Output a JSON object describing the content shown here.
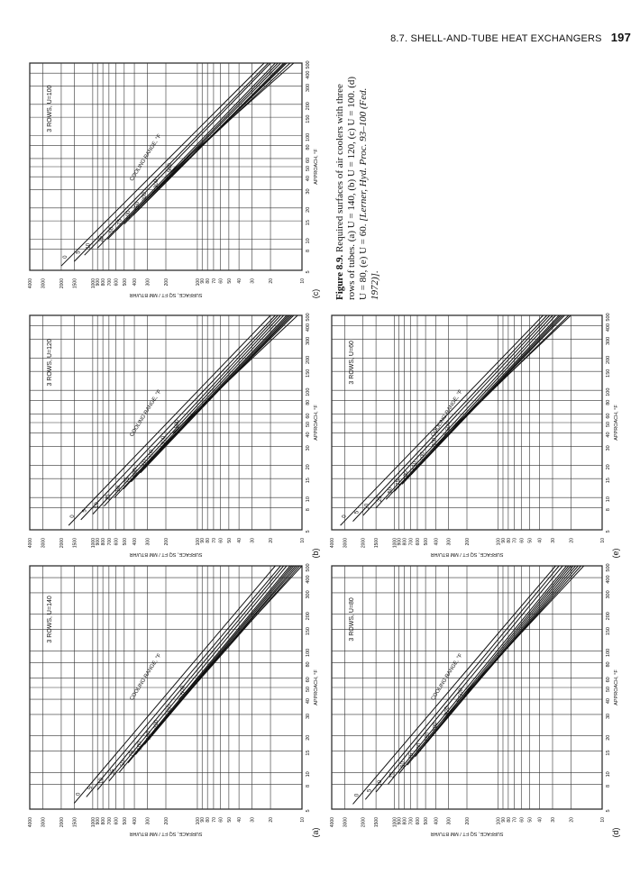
{
  "header": {
    "section": "8.7. SHELL-AND-TUBE HEAT EXCHANGERS",
    "page_number": "197"
  },
  "caption": {
    "figure_label": "Figure 8.9.",
    "text": "Required surfaces of air coolers with three rows of tubes. (a) U = 140, (b) U = 120, (c) U = 100. (d) U = 80, (e) U = 60.",
    "citation": "[Lerner, Hyd. Proc. 93–100 (Fed. 1972)]."
  },
  "colors": {
    "ink": "#111111",
    "grid": "#333333",
    "paper": "#ffffff"
  },
  "chart_data": [
    {
      "type": "line",
      "panel": "(a)",
      "title": "3 ROWS, U=140",
      "xlabel": "APPROACH, °F",
      "ylabel": "SURFACE, SQ FT / MM BTU/HR",
      "xscale": "log",
      "yscale": "log",
      "xlim": [
        5,
        500
      ],
      "ylim": [
        10,
        4000
      ],
      "x_ticks": [
        "5",
        "8",
        "10",
        "15",
        "20",
        "30",
        "40",
        "50",
        "60",
        "80",
        "100",
        "150",
        "200",
        "300",
        "400",
        "500"
      ],
      "y_ticks": [
        "4000",
        "3000",
        "2000",
        "1500",
        "1000",
        "900",
        "800",
        "700",
        "600",
        "500",
        "400",
        "300",
        "200",
        "100",
        "90",
        "80",
        "70",
        "60",
        "50",
        "40",
        "30",
        "20",
        "10"
      ],
      "annotation": "COOLING RANGE, °F",
      "series": [
        {
          "name": "0",
          "x": [
            5.6,
            500
          ],
          "y": [
            1500,
            18
          ]
        },
        {
          "name": "5",
          "x": [
            6.3,
            500
          ],
          "y": [
            1150,
            16
          ]
        },
        {
          "name": "10",
          "x": [
            7.2,
            500
          ],
          "y": [
            900,
            15
          ]
        },
        {
          "name": "25",
          "x": [
            8.5,
            500
          ],
          "y": [
            700,
            14
          ]
        },
        {
          "name": "50",
          "x": [
            10,
            500
          ],
          "y": [
            560,
            13
          ]
        },
        {
          "name": "75",
          "x": [
            12,
            500
          ],
          "y": [
            460,
            12.5
          ]
        },
        {
          "name": "100",
          "x": [
            14,
            500
          ],
          "y": [
            390,
            12
          ]
        },
        {
          "name": "150",
          "x": [
            17,
            500
          ],
          "y": [
            320,
            11.5
          ]
        },
        {
          "name": "200",
          "x": [
            21,
            500
          ],
          "y": [
            270,
            11
          ]
        },
        {
          "name": "300",
          "x": [
            28,
            500
          ],
          "y": [
            200,
            10.5
          ]
        },
        {
          "name": "500",
          "x": [
            40,
            500
          ],
          "y": [
            150,
            10
          ]
        }
      ]
    },
    {
      "type": "line",
      "panel": "(b)",
      "title": "3 ROWS, U=120",
      "xlabel": "APPROACH, °F",
      "ylabel": "SURFACE, SQ FT / MM BTU/HR",
      "xscale": "log",
      "yscale": "log",
      "xlim": [
        5,
        500
      ],
      "ylim": [
        10,
        4000
      ],
      "x_ticks": [
        "5",
        "8",
        "10",
        "15",
        "20",
        "30",
        "40",
        "50",
        "60",
        "80",
        "100",
        "150",
        "200",
        "300",
        "400",
        "500"
      ],
      "y_ticks": [
        "4000",
        "3000",
        "2000",
        "1500",
        "1000",
        "900",
        "800",
        "700",
        "600",
        "500",
        "400",
        "300",
        "200",
        "100",
        "90",
        "80",
        "70",
        "60",
        "50",
        "40",
        "30",
        "20",
        "10"
      ],
      "annotation": "COOLING RANGE, °F",
      "series": [
        {
          "name": "0",
          "x": [
            5.5,
            500
          ],
          "y": [
            1700,
            20
          ]
        },
        {
          "name": "5",
          "x": [
            6.2,
            500
          ],
          "y": [
            1300,
            18
          ]
        },
        {
          "name": "10",
          "x": [
            7,
            500
          ],
          "y": [
            1000,
            17
          ]
        },
        {
          "name": "25",
          "x": [
            8.3,
            500
          ],
          "y": [
            780,
            16
          ]
        },
        {
          "name": "50",
          "x": [
            10,
            500
          ],
          "y": [
            620,
            15
          ]
        },
        {
          "name": "75",
          "x": [
            12,
            500
          ],
          "y": [
            510,
            14
          ]
        },
        {
          "name": "100",
          "x": [
            14,
            500
          ],
          "y": [
            430,
            13.5
          ]
        },
        {
          "name": "150",
          "x": [
            17,
            500
          ],
          "y": [
            350,
            13
          ]
        },
        {
          "name": "200",
          "x": [
            21,
            500
          ],
          "y": [
            300,
            12.5
          ]
        },
        {
          "name": "300",
          "x": [
            28,
            500
          ],
          "y": [
            230,
            12
          ]
        },
        {
          "name": "500",
          "x": [
            40,
            500
          ],
          "y": [
            170,
            11
          ]
        }
      ]
    },
    {
      "type": "line",
      "panel": "(c)",
      "title": "3 ROWS, U=100",
      "xlabel": "APPROACH, °F",
      "ylabel": "SURFACE, SQ FT / MM BTU/HR",
      "xscale": "log",
      "yscale": "log",
      "xlim": [
        5,
        500
      ],
      "ylim": [
        10,
        4000
      ],
      "x_ticks": [
        "5",
        "8",
        "10",
        "15",
        "20",
        "30",
        "40",
        "50",
        "60",
        "80",
        "100",
        "150",
        "200",
        "300",
        "400",
        "500"
      ],
      "y_ticks": [
        "4000",
        "3000",
        "2000",
        "1500",
        "1000",
        "900",
        "800",
        "700",
        "600",
        "500",
        "400",
        "300",
        "200",
        "100",
        "90",
        "80",
        "70",
        "60",
        "50",
        "40",
        "30",
        "20",
        "10"
      ],
      "annotation": "COOLING RANGE, °F",
      "series": [
        {
          "name": "0",
          "x": [
            5.5,
            500
          ],
          "y": [
            2000,
            23
          ]
        },
        {
          "name": "5",
          "x": [
            6.1,
            500
          ],
          "y": [
            1500,
            21
          ]
        },
        {
          "name": "10",
          "x": [
            7,
            500
          ],
          "y": [
            1200,
            20
          ]
        },
        {
          "name": "25",
          "x": [
            8.2,
            500
          ],
          "y": [
            900,
            18
          ]
        },
        {
          "name": "50",
          "x": [
            10,
            500
          ],
          "y": [
            720,
            17
          ]
        },
        {
          "name": "75",
          "x": [
            12,
            500
          ],
          "y": [
            600,
            16
          ]
        },
        {
          "name": "100",
          "x": [
            14,
            500
          ],
          "y": [
            500,
            15
          ]
        },
        {
          "name": "150",
          "x": [
            17,
            500
          ],
          "y": [
            410,
            14.5
          ]
        },
        {
          "name": "200",
          "x": [
            21,
            500
          ],
          "y": [
            350,
            14
          ]
        },
        {
          "name": "300",
          "x": [
            28,
            500
          ],
          "y": [
            270,
            13
          ]
        },
        {
          "name": "500",
          "x": [
            40,
            500
          ],
          "y": [
            200,
            12
          ]
        }
      ]
    },
    {
      "type": "line",
      "panel": "(d)",
      "title": "3 ROWS, U=80",
      "xlabel": "APPROACH, °F",
      "ylabel": "SURFACE, SQ FT / MM BTU/HR",
      "xscale": "log",
      "yscale": "log",
      "xlim": [
        5,
        500
      ],
      "ylim": [
        10,
        4000
      ],
      "x_ticks": [
        "5",
        "8",
        "10",
        "15",
        "20",
        "30",
        "40",
        "50",
        "60",
        "80",
        "100",
        "150",
        "200",
        "300",
        "400",
        "500"
      ],
      "y_ticks": [
        "4000",
        "3000",
        "2000",
        "1500",
        "1000",
        "900",
        "800",
        "700",
        "600",
        "500",
        "400",
        "300",
        "200",
        "100",
        "90",
        "80",
        "70",
        "60",
        "50",
        "40",
        "30",
        "20",
        "10"
      ],
      "annotation": "COOLING RANGE, °F",
      "series": [
        {
          "name": "0",
          "x": [
            5.5,
            500
          ],
          "y": [
            2500,
            28
          ]
        },
        {
          "name": "5",
          "x": [
            6,
            500
          ],
          "y": [
            1900,
            26
          ]
        },
        {
          "name": "10",
          "x": [
            6.9,
            500
          ],
          "y": [
            1500,
            24
          ]
        },
        {
          "name": "25",
          "x": [
            8,
            500
          ],
          "y": [
            1150,
            22
          ]
        },
        {
          "name": "50",
          "x": [
            9.8,
            500
          ],
          "y": [
            900,
            21
          ]
        },
        {
          "name": "75",
          "x": [
            11.5,
            500
          ],
          "y": [
            750,
            20
          ]
        },
        {
          "name": "100",
          "x": [
            13.5,
            500
          ],
          "y": [
            630,
            19
          ]
        },
        {
          "name": "150",
          "x": [
            16.5,
            500
          ],
          "y": [
            520,
            18
          ]
        },
        {
          "name": "200",
          "x": [
            20,
            500
          ],
          "y": [
            440,
            17
          ]
        },
        {
          "name": "300",
          "x": [
            27,
            500
          ],
          "y": [
            340,
            16
          ]
        },
        {
          "name": "500",
          "x": [
            38,
            500
          ],
          "y": [
            250,
            15
          ]
        }
      ]
    },
    {
      "type": "line",
      "panel": "(e)",
      "title": "3 ROWS, U=60",
      "xlabel": "APPROACH, °F",
      "ylabel": "SURFACE, SQ FT / MM BTU/HR",
      "xscale": "log",
      "yscale": "log",
      "xlim": [
        5,
        500
      ],
      "ylim": [
        10,
        4000
      ],
      "x_ticks": [
        "5",
        "8",
        "10",
        "15",
        "20",
        "30",
        "40",
        "50",
        "60",
        "80",
        "100",
        "150",
        "200",
        "300",
        "400",
        "500"
      ],
      "y_ticks": [
        "4000",
        "3000",
        "2000",
        "1500",
        "1000",
        "900",
        "800",
        "700",
        "600",
        "500",
        "400",
        "300",
        "200",
        "100",
        "90",
        "80",
        "70",
        "60",
        "50",
        "40",
        "30",
        "20",
        "10"
      ],
      "annotation": "COOLING RANGE, °F",
      "series": [
        {
          "name": "0",
          "x": [
            5.5,
            500
          ],
          "y": [
            3300,
            37
          ]
        },
        {
          "name": "5",
          "x": [
            6,
            500
          ],
          "y": [
            2500,
            34
          ]
        },
        {
          "name": "10",
          "x": [
            6.8,
            500
          ],
          "y": [
            2000,
            32
          ]
        },
        {
          "name": "25",
          "x": [
            8,
            500
          ],
          "y": [
            1500,
            30
          ]
        },
        {
          "name": "50",
          "x": [
            9.6,
            500
          ],
          "y": [
            1200,
            28
          ]
        },
        {
          "name": "75",
          "x": [
            11.4,
            500
          ],
          "y": [
            1000,
            26
          ]
        },
        {
          "name": "100",
          "x": [
            13.3,
            500
          ],
          "y": [
            840,
            25
          ]
        },
        {
          "name": "150",
          "x": [
            16.3,
            500
          ],
          "y": [
            690,
            24
          ]
        },
        {
          "name": "200",
          "x": [
            20,
            500
          ],
          "y": [
            580,
            23
          ]
        },
        {
          "name": "300",
          "x": [
            27,
            500
          ],
          "y": [
            450,
            21
          ]
        },
        {
          "name": "500",
          "x": [
            38,
            500
          ],
          "y": [
            330,
            20
          ]
        }
      ]
    }
  ]
}
